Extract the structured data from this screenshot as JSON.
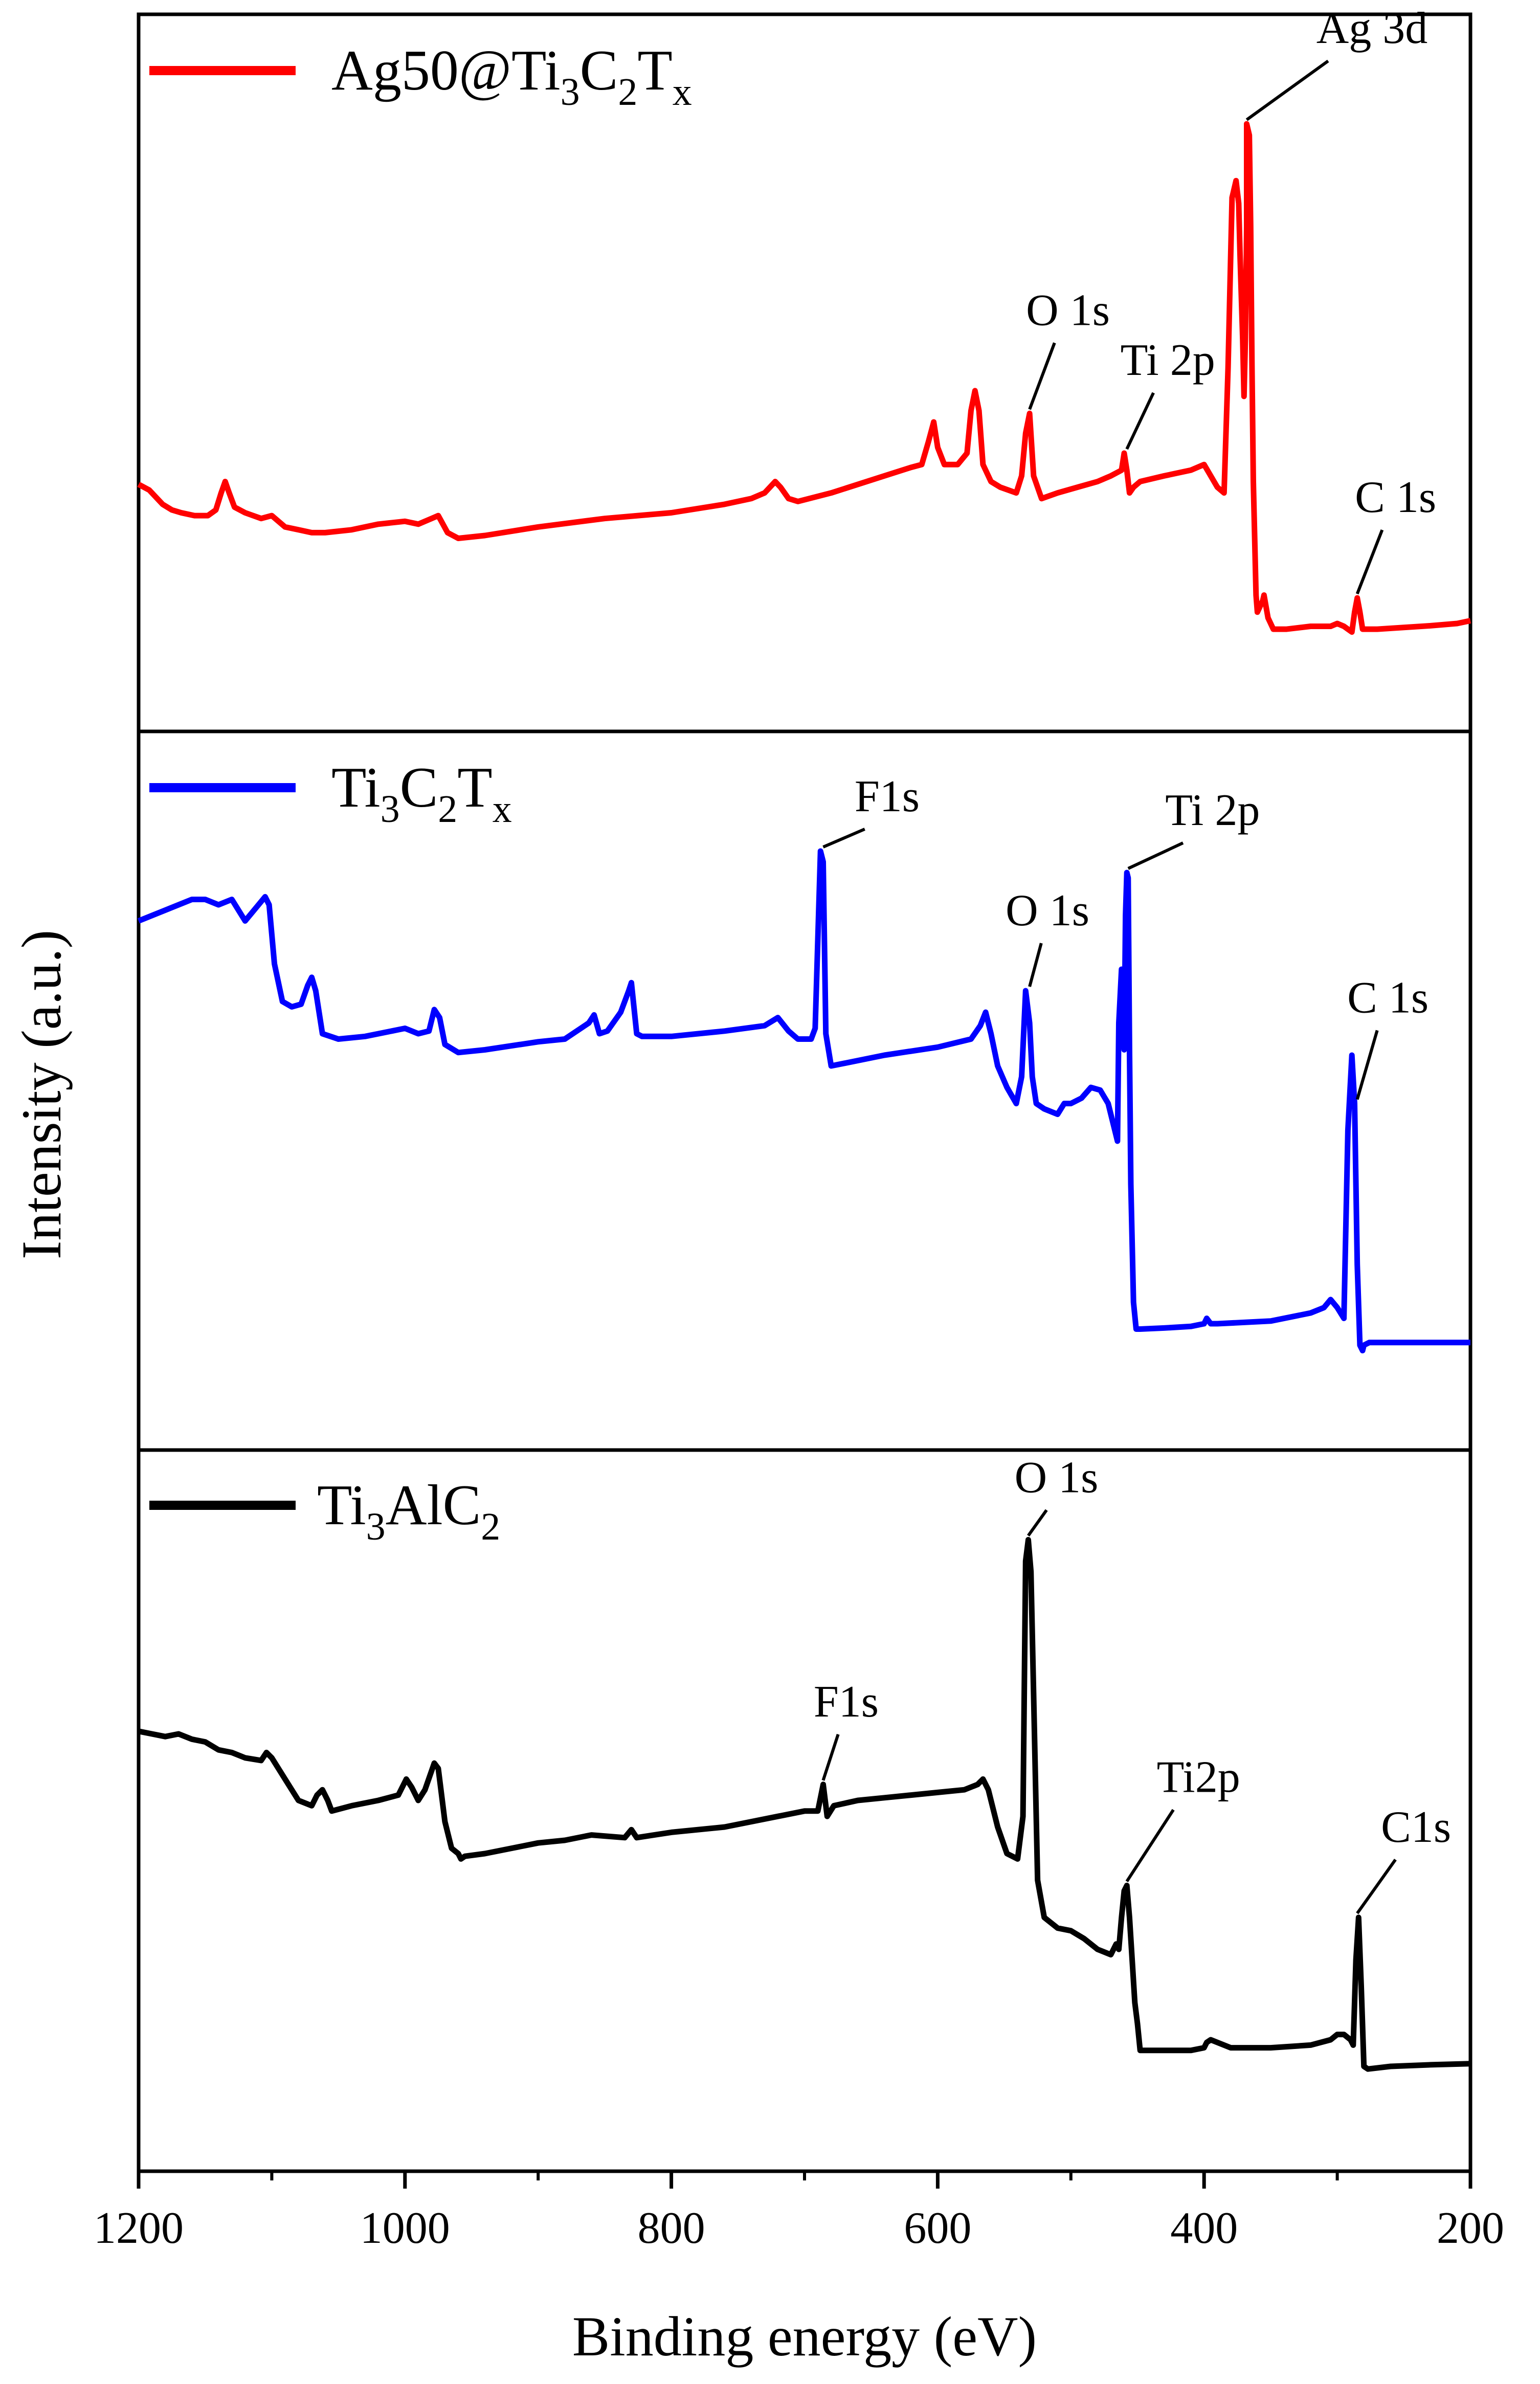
{
  "chart_data": {
    "type": "line",
    "layout": "stacked-panels",
    "xlabel": "Binding energy (eV)",
    "ylabel": "Intensity (a.u.)",
    "xlim": [
      1200,
      200
    ],
    "x_reversed": true,
    "x_ticks": [
      1200,
      1000,
      800,
      600,
      400,
      200
    ],
    "y_ticks_shown": false,
    "grid": false,
    "panels": [
      {
        "id": "ag50",
        "legend": {
          "prefix": "Ag50@Ti",
          "s1": "3",
          "m1": "C",
          "s2": "2",
          "m2": "T",
          "s3": "x"
        },
        "legend_location": "top-left",
        "color": "#ff0000",
        "ylim": [
          0,
          100
        ],
        "series": {
          "name": "Ag50@Ti3C2Tx",
          "x": [
            1200,
            1192,
            1182,
            1175,
            1168,
            1158,
            1148,
            1142,
            1138,
            1135,
            1132,
            1128,
            1120,
            1108,
            1100,
            1090,
            1080,
            1070,
            1060,
            1040,
            1020,
            1000,
            990,
            980,
            975,
            968,
            960,
            940,
            900,
            850,
            800,
            760,
            740,
            730,
            722,
            718,
            712,
            705,
            680,
            640,
            620,
            612,
            607,
            603,
            600,
            595,
            585,
            578,
            575,
            572,
            569,
            566,
            560,
            553,
            541,
            537,
            534,
            531,
            528,
            522,
            510,
            495,
            480,
            470,
            462,
            460,
            458,
            456,
            453,
            448,
            430,
            410,
            400,
            395,
            390,
            385,
            382,
            379,
            376,
            374,
            373,
            371,
            370,
            369,
            368,
            368,
            366,
            365,
            364,
            363,
            361,
            360,
            358,
            356,
            355,
            352,
            348,
            338,
            320,
            305,
            300,
            295,
            292,
            289,
            287,
            285,
            283,
            281,
            278,
            270,
            250,
            230,
            210,
            200
          ],
          "y": [
            34.5,
            33.5,
            31,
            30,
            29.5,
            29,
            29,
            30,
            33,
            35,
            33,
            30.5,
            29.5,
            28.5,
            29,
            27,
            26.5,
            26,
            26,
            26.5,
            27.5,
            28,
            27.5,
            28.5,
            29,
            26,
            25,
            25.5,
            27,
            28.5,
            29.5,
            31,
            32,
            33,
            35,
            34,
            32,
            31.5,
            33,
            36,
            37.5,
            38,
            42,
            45.5,
            41,
            38,
            38,
            40,
            47.5,
            51,
            47.5,
            38,
            35,
            34,
            33,
            36,
            43.5,
            47,
            36,
            32,
            33,
            34,
            35,
            36,
            37,
            40,
            37,
            33,
            34,
            35,
            36,
            37,
            38,
            36,
            34,
            33,
            55,
            85,
            88,
            84,
            75,
            60,
            50,
            60,
            80,
            98,
            96,
            80,
            55,
            35,
            15,
            12,
            13,
            14,
            15,
            11,
            9,
            9,
            9.5,
            9.5,
            10,
            9.5,
            9,
            8.5,
            12,
            14.5,
            12,
            9,
            9,
            9,
            9.3,
            9.6,
            10,
            10.5
          ]
        },
        "annotations": [
          {
            "label": "Ag 3d",
            "x": 368
          },
          {
            "label": "O 1s",
            "x": 531
          },
          {
            "label": "Ti 2p",
            "x": 458
          },
          {
            "label": "C 1s",
            "x": 285
          }
        ]
      },
      {
        "id": "ti3c2tx",
        "legend": {
          "prefix": "Ti",
          "s1": "3",
          "m1": "C",
          "s2": "2",
          "m2": "T",
          "s3": "x"
        },
        "legend_location": "top-left",
        "color": "#0000ff",
        "ylim": [
          0,
          100
        ],
        "series": {
          "name": "Ti3C2Tx",
          "x": [
            1200,
            1190,
            1180,
            1170,
            1160,
            1150,
            1140,
            1130,
            1120,
            1110,
            1105,
            1102,
            1098,
            1092,
            1085,
            1078,
            1073,
            1070,
            1067,
            1062,
            1050,
            1030,
            1010,
            1000,
            990,
            982,
            978,
            974,
            970,
            960,
            940,
            900,
            880,
            862,
            858,
            854,
            848,
            838,
            832,
            830,
            826,
            822,
            800,
            760,
            730,
            720,
            712,
            705,
            695,
            692,
            688,
            686,
            684,
            680,
            670,
            640,
            600,
            575,
            568,
            564,
            560,
            555,
            548,
            541,
            537,
            534,
            531,
            529,
            526,
            520,
            510,
            505,
            500,
            492,
            485,
            478,
            472,
            468,
            465,
            464,
            462,
            460,
            459,
            458,
            457,
            456,
            455,
            453,
            451,
            450,
            448,
            430,
            410,
            400,
            398,
            395,
            390,
            350,
            320,
            310,
            305,
            300,
            295,
            292,
            289,
            287,
            285,
            283,
            281,
            280,
            276,
            260,
            240,
            220,
            200
          ],
          "y": [
            79,
            80,
            81,
            82,
            83,
            83,
            82,
            83,
            79,
            82,
            83.5,
            82,
            71,
            64,
            63,
            63.5,
            67,
            68.5,
            66,
            58,
            57,
            57.5,
            58.5,
            59,
            58,
            58.5,
            62.5,
            61,
            56,
            54.5,
            55,
            56.5,
            57,
            60,
            61.5,
            58,
            58.5,
            62,
            66,
            67.5,
            58,
            57.5,
            57.5,
            58.5,
            59.5,
            61,
            58.5,
            57,
            57,
            59,
            92,
            90,
            58,
            52,
            52.5,
            54,
            55.5,
            57,
            59.5,
            62,
            58,
            52,
            48,
            45,
            50,
            66,
            60,
            50,
            45,
            44,
            43,
            45,
            45,
            46,
            48,
            47.5,
            45,
            41,
            38,
            60,
            70,
            55,
            80,
            88,
            87,
            55,
            30,
            8,
            3,
            3,
            3,
            3.2,
            3.5,
            4,
            5,
            4,
            4,
            4.5,
            6,
            7,
            8.5,
            7,
            5,
            40,
            54,
            45,
            15,
            0,
            -1,
            0,
            0.5,
            0.5,
            0.5,
            0.5,
            0.5
          ]
        },
        "annotations": [
          {
            "label": "F1s",
            "x": 686
          },
          {
            "label": "O 1s",
            "x": 531
          },
          {
            "label": "Ti 2p",
            "x": 457
          },
          {
            "label": "C 1s",
            "x": 285
          }
        ]
      },
      {
        "id": "ti3alc2",
        "legend": {
          "prefix": "Ti",
          "s1": "3",
          "m1": "AlC",
          "s2": "2",
          "m2": "",
          "s3": ""
        },
        "legend_location": "top-left",
        "color": "#000000",
        "ylim": [
          0,
          100
        ],
        "series": {
          "name": "Ti3AlC2",
          "x": [
            1200,
            1190,
            1180,
            1170,
            1160,
            1150,
            1140,
            1130,
            1120,
            1108,
            1104,
            1100,
            1090,
            1080,
            1070,
            1066,
            1062,
            1058,
            1055,
            1040,
            1020,
            1005,
            999,
            995,
            990,
            985,
            978,
            975,
            970,
            965,
            960,
            958,
            955,
            940,
            920,
            900,
            880,
            860,
            835,
            830,
            826,
            800,
            760,
            720,
            700,
            690,
            686,
            683,
            678,
            660,
            640,
            620,
            600,
            580,
            570,
            566,
            562,
            555,
            548,
            540,
            536,
            534,
            532,
            530,
            528,
            525,
            520,
            510,
            500,
            490,
            480,
            470,
            466,
            464,
            462,
            460,
            458,
            456,
            454,
            452,
            450,
            448,
            430,
            410,
            400,
            398,
            395,
            380,
            350,
            320,
            305,
            300,
            295,
            290,
            288,
            286,
            284,
            282,
            280,
            277,
            260,
            230,
            200
          ],
          "y": [
            63,
            62.5,
            62,
            62.5,
            61.5,
            61,
            59.5,
            59,
            58,
            57.5,
            59,
            58,
            54,
            50,
            49,
            51,
            52,
            50,
            48,
            49,
            50,
            51,
            54,
            52.5,
            50,
            52,
            57,
            56,
            46,
            41,
            40,
            39,
            39.5,
            40,
            41,
            42,
            42.5,
            43.5,
            43,
            44.5,
            43,
            44,
            45,
            47,
            48,
            48,
            53,
            47,
            49,
            50,
            50.5,
            51,
            51.5,
            52,
            53,
            54,
            52,
            45,
            40,
            39,
            47,
            95,
            99,
            93,
            70,
            35,
            28,
            26,
            25.5,
            24,
            22,
            21,
            23,
            22,
            28,
            33,
            34,
            28,
            20,
            12,
            8,
            3,
            3,
            3,
            3.5,
            4.5,
            5,
            3.5,
            3.5,
            4,
            5,
            6,
            6,
            5,
            4,
            20,
            28,
            15,
            0,
            -0.5,
            0,
            0.3,
            0.5
          ]
        },
        "annotations": [
          {
            "label": "O 1s",
            "x": 532
          },
          {
            "label": "F1s",
            "x": 686
          },
          {
            "label": "Ti2p",
            "x": 458
          },
          {
            "label": "C1s",
            "x": 285
          }
        ]
      }
    ]
  }
}
